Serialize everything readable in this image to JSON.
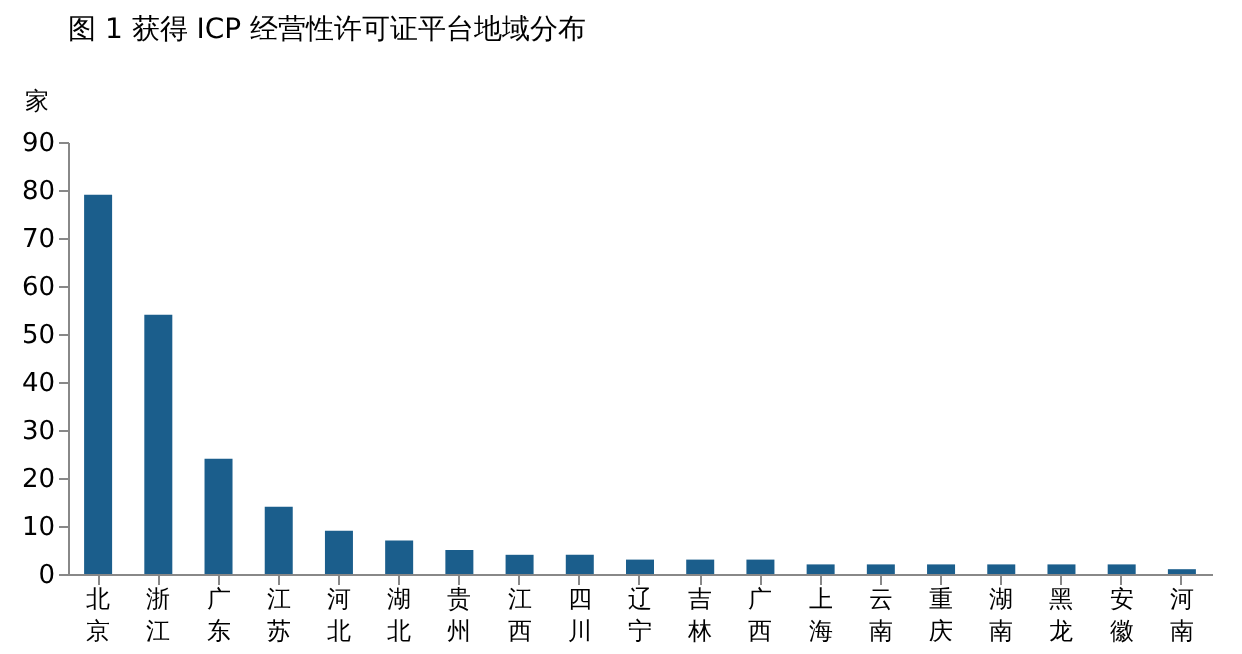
{
  "chart_data": {
    "type": "bar",
    "title": "图 1  获得 ICP 经营性许可证平台地域分布",
    "ylabel": "家",
    "categories": [
      "北京",
      "浙江",
      "广东",
      "江苏",
      "河北",
      "湖北",
      "贵州",
      "江西",
      "四川",
      "辽宁",
      "吉林",
      "广西",
      "上海",
      "云南",
      "重庆",
      "湖南",
      "黑龙",
      "安徽",
      "河南"
    ],
    "values": [
      79,
      54,
      24,
      14,
      9,
      7,
      5,
      4,
      4,
      3,
      3,
      3,
      2,
      2,
      2,
      2,
      2,
      2,
      1
    ],
    "color": "#1b5e8c",
    "ylim": [
      0,
      90
    ],
    "yticks": [
      0,
      10,
      20,
      30,
      40,
      50,
      60,
      70,
      80,
      90
    ],
    "grid": false
  }
}
